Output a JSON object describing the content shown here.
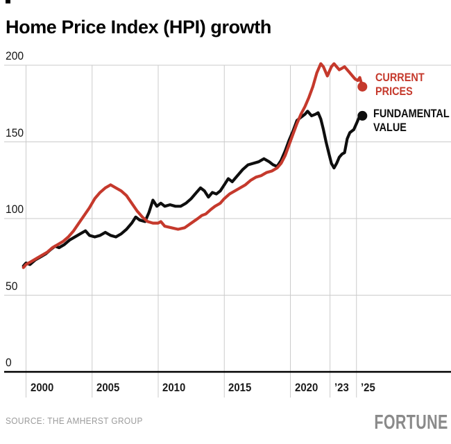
{
  "header": {
    "title": "Home Price Index (HPI) growth"
  },
  "footer": {
    "source": "SOURCE: THE AMHERST GROUP",
    "brand": "FORTUNE"
  },
  "colors": {
    "current_prices": "#c5392c",
    "fundamental_value": "#0e0e0e",
    "grid": "#cbcbcb",
    "axis": "#000000",
    "tick_text": "#1c1c1c",
    "footer_text": "#9b9b9b",
    "brand_text": "#8a8a8a",
    "background": "#ffffff"
  },
  "chart_data": {
    "type": "line",
    "title": "Home Price Index (HPI) growth",
    "xlabel": "",
    "ylabel": "",
    "xlim": [
      1999.7,
      2026.3
    ],
    "ylim": [
      0,
      200
    ],
    "grid": true,
    "legend_position": "right-of-line-ends",
    "y_ticks": [
      200,
      150,
      100,
      50,
      0
    ],
    "x_ticks": [
      {
        "label": "2000",
        "year": 2000
      },
      {
        "label": "2005",
        "year": 2005
      },
      {
        "label": "2010",
        "year": 2010
      },
      {
        "label": "2015",
        "year": 2015
      },
      {
        "label": "2020",
        "year": 2020
      },
      {
        "label": "’23",
        "year": 2023
      },
      {
        "label": "’25",
        "year": 2025
      }
    ],
    "series": [
      {
        "name": "CURRENT PRICES",
        "label_lines": [
          "CURRENT",
          "PRICES"
        ],
        "color": "#c5392c",
        "end_value": 186,
        "points": [
          [
            1999.8,
            68
          ],
          [
            2000,
            70
          ],
          [
            2000.4,
            72
          ],
          [
            2000.8,
            74
          ],
          [
            2001.2,
            76
          ],
          [
            2001.6,
            78
          ],
          [
            2002,
            81
          ],
          [
            2002.4,
            83
          ],
          [
            2002.8,
            85
          ],
          [
            2003.2,
            88
          ],
          [
            2003.6,
            92
          ],
          [
            2004,
            97
          ],
          [
            2004.4,
            102
          ],
          [
            2004.8,
            107
          ],
          [
            2005.2,
            113
          ],
          [
            2005.6,
            117
          ],
          [
            2006,
            120
          ],
          [
            2006.4,
            122
          ],
          [
            2006.8,
            120
          ],
          [
            2007.2,
            118
          ],
          [
            2007.6,
            115
          ],
          [
            2008,
            110
          ],
          [
            2008.4,
            105
          ],
          [
            2008.8,
            101
          ],
          [
            2009.2,
            98
          ],
          [
            2009.6,
            97
          ],
          [
            2010,
            97
          ],
          [
            2010.2,
            98
          ],
          [
            2010.5,
            95
          ],
          [
            2011,
            94
          ],
          [
            2011.5,
            93
          ],
          [
            2012,
            94
          ],
          [
            2012.5,
            97
          ],
          [
            2013,
            100
          ],
          [
            2013.3,
            102
          ],
          [
            2013.6,
            103
          ],
          [
            2014,
            106
          ],
          [
            2014.3,
            108
          ],
          [
            2014.7,
            110
          ],
          [
            2015,
            113
          ],
          [
            2015.4,
            116
          ],
          [
            2015.8,
            118
          ],
          [
            2016.2,
            120
          ],
          [
            2016.6,
            122
          ],
          [
            2017,
            125
          ],
          [
            2017.4,
            127
          ],
          [
            2017.8,
            128
          ],
          [
            2018.2,
            130
          ],
          [
            2018.6,
            131
          ],
          [
            2019,
            133
          ],
          [
            2019.3,
            136
          ],
          [
            2019.6,
            141
          ],
          [
            2019.9,
            148
          ],
          [
            2020.2,
            155
          ],
          [
            2020.5,
            162
          ],
          [
            2020.8,
            168
          ],
          [
            2021.1,
            173
          ],
          [
            2021.4,
            179
          ],
          [
            2021.7,
            186
          ],
          [
            2022,
            195
          ],
          [
            2022.3,
            201
          ],
          [
            2022.5,
            199
          ],
          [
            2022.8,
            193
          ],
          [
            2023.1,
            199
          ],
          [
            2023.3,
            201
          ],
          [
            2023.5,
            199
          ],
          [
            2023.7,
            197
          ],
          [
            2023.9,
            198
          ],
          [
            2024.1,
            199
          ],
          [
            2024.4,
            196
          ],
          [
            2024.7,
            193
          ],
          [
            2024.9,
            191
          ],
          [
            2025.1,
            190
          ],
          [
            2025.25,
            192
          ],
          [
            2025.45,
            186
          ]
        ]
      },
      {
        "name": "FUNDAMENTAL VALUE",
        "label_lines": [
          "FUNDAMENTAL",
          "VALUE"
        ],
        "color": "#0e0e0e",
        "end_value": 167,
        "points": [
          [
            1999.8,
            69
          ],
          [
            2000,
            71
          ],
          [
            2000.3,
            70
          ],
          [
            2000.7,
            73
          ],
          [
            2001.1,
            75
          ],
          [
            2001.5,
            77
          ],
          [
            2001.9,
            80
          ],
          [
            2002.2,
            82
          ],
          [
            2002.5,
            81
          ],
          [
            2002.9,
            83
          ],
          [
            2003.3,
            86
          ],
          [
            2003.7,
            88
          ],
          [
            2004.1,
            90
          ],
          [
            2004.5,
            92
          ],
          [
            2004.8,
            89
          ],
          [
            2005.2,
            88
          ],
          [
            2005.6,
            89
          ],
          [
            2006,
            91
          ],
          [
            2006.4,
            89
          ],
          [
            2006.8,
            88
          ],
          [
            2007.2,
            90
          ],
          [
            2007.6,
            93
          ],
          [
            2008,
            97
          ],
          [
            2008.3,
            101
          ],
          [
            2008.6,
            99
          ],
          [
            2009,
            98
          ],
          [
            2009.3,
            104
          ],
          [
            2009.6,
            112
          ],
          [
            2009.9,
            108
          ],
          [
            2010.2,
            110
          ],
          [
            2010.5,
            108
          ],
          [
            2010.9,
            109
          ],
          [
            2011.3,
            108
          ],
          [
            2011.7,
            108
          ],
          [
            2012.1,
            110
          ],
          [
            2012.5,
            113
          ],
          [
            2012.9,
            117
          ],
          [
            2013.2,
            120
          ],
          [
            2013.5,
            118
          ],
          [
            2013.8,
            114
          ],
          [
            2014.1,
            117
          ],
          [
            2014.4,
            116
          ],
          [
            2014.7,
            118
          ],
          [
            2015,
            122
          ],
          [
            2015.3,
            126
          ],
          [
            2015.6,
            124
          ],
          [
            2016,
            128
          ],
          [
            2016.4,
            132
          ],
          [
            2016.8,
            135
          ],
          [
            2017.2,
            136
          ],
          [
            2017.6,
            137
          ],
          [
            2018,
            139
          ],
          [
            2018.4,
            137
          ],
          [
            2018.7,
            135
          ],
          [
            2019,
            134
          ],
          [
            2019.3,
            138
          ],
          [
            2019.6,
            144
          ],
          [
            2019.9,
            151
          ],
          [
            2020.2,
            157
          ],
          [
            2020.5,
            164
          ],
          [
            2020.8,
            166
          ],
          [
            2021.1,
            168
          ],
          [
            2021.3,
            170
          ],
          [
            2021.6,
            167
          ],
          [
            2021.9,
            168
          ],
          [
            2022.1,
            169
          ],
          [
            2022.3,
            165
          ],
          [
            2022.5,
            158
          ],
          [
            2022.7,
            150
          ],
          [
            2022.9,
            143
          ],
          [
            2023.1,
            136
          ],
          [
            2023.3,
            133
          ],
          [
            2023.5,
            136
          ],
          [
            2023.7,
            140
          ],
          [
            2023.9,
            142
          ],
          [
            2024.1,
            143
          ],
          [
            2024.3,
            152
          ],
          [
            2024.5,
            156
          ],
          [
            2024.8,
            158
          ],
          [
            2025,
            162
          ],
          [
            2025.2,
            166
          ],
          [
            2025.45,
            167
          ]
        ]
      }
    ]
  }
}
